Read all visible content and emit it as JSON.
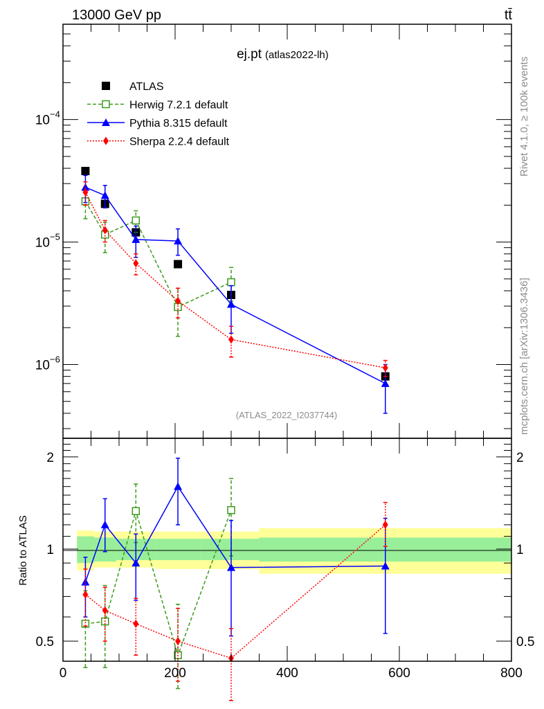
{
  "header": {
    "energy_label": "13000 GeV pp",
    "process_label": "tt̄"
  },
  "side_labels": {
    "rivet": "Rivet 4.1.0, ≥ 100k events",
    "mcplots": "mcplots.cern.ch [arXiv:1306.3436]"
  },
  "chart_data": [
    {
      "type": "scatter",
      "title": "ej.pt",
      "subtitle": "(atlas2022-lh)",
      "watermark": "(ATLAS_2022_I2037744)",
      "xlabel": "",
      "ylabel": "",
      "xlim": [
        0,
        800
      ],
      "ylim": [
        2.5e-07,
        0.0006
      ],
      "yscale": "log",
      "ytick_labels": [
        {
          "value": 1e-06,
          "base": "10",
          "exp": "−6"
        },
        {
          "value": 1e-05,
          "base": "10",
          "exp": "−5"
        },
        {
          "value": 0.0001,
          "base": "10",
          "exp": "−4"
        }
      ],
      "legend_position": "top-left",
      "series": [
        {
          "name": "ATLAS",
          "color": "#000000",
          "marker": "square-filled",
          "line": "none",
          "x": [
            40,
            75,
            130,
            205,
            300,
            575
          ],
          "y": [
            3.8e-05,
            2.05e-05,
            1.2e-05,
            6.6e-06,
            3.7e-06,
            8e-07
          ]
        },
        {
          "name": "Herwig 7.2.1 default",
          "color": "#3a9a1a",
          "marker": "square-open",
          "line": "dashed",
          "x": [
            40,
            75,
            130,
            205,
            300
          ],
          "y": [
            2.15e-05,
            1.15e-05,
            1.5e-05,
            2.95e-06,
            4.7e-06
          ],
          "err_lo": [
            1.55e-05,
            8.2e-06,
            1.2e-05,
            1.7e-06,
            3.3e-06
          ],
          "err_hi": [
            2.75e-05,
            1.45e-05,
            1.8e-05,
            4.2e-06,
            6.2e-06
          ]
        },
        {
          "name": "Pythia 8.315 default",
          "color": "#0000ff",
          "marker": "triangle-filled",
          "line": "solid",
          "x": [
            40,
            75,
            130,
            205,
            300,
            575
          ],
          "y": [
            2.8e-05,
            2.4e-05,
            1.05e-05,
            1.02e-05,
            3.1e-06,
            7e-07
          ],
          "err_lo": [
            2.1e-05,
            1.9e-05,
            7.5e-06,
            7.8e-06,
            1.8e-06,
            4e-07
          ],
          "err_hi": [
            3.5e-05,
            2.9e-05,
            1.35e-05,
            1.28e-05,
            4.4e-06,
            1e-06
          ]
        },
        {
          "name": "Sherpa 2.2.4 default",
          "color": "#ff0000",
          "marker": "diamond-filled",
          "line": "dotted",
          "x": [
            40,
            75,
            130,
            205,
            300,
            575
          ],
          "y": [
            2.55e-05,
            1.25e-05,
            6.7e-06,
            3.3e-06,
            1.6e-06,
            9.4e-07
          ],
          "err_lo": [
            2e-05,
            1e-05,
            5.4e-06,
            2.4e-06,
            1.15e-06,
            8e-07
          ],
          "err_hi": [
            3.1e-05,
            1.5e-05,
            8e-06,
            4.2e-06,
            2.05e-06,
            1.08e-06
          ]
        }
      ]
    },
    {
      "type": "scatter",
      "xlabel": "",
      "ylabel": "Ratio to ATLAS",
      "xlim": [
        0,
        800
      ],
      "ylim": [
        0.43,
        2.3
      ],
      "yscale": "log",
      "xtick_labels": [
        "0",
        "200",
        "400",
        "600",
        "800"
      ],
      "ytick_labels": [
        "0.5",
        "1",
        "2"
      ],
      "uncertainty_bands": [
        {
          "x": [
            25,
            55
          ],
          "inner": [
            0.9,
            1.1
          ],
          "outer": [
            0.85,
            1.15
          ]
        },
        {
          "x": [
            55,
            95
          ],
          "inner": [
            0.91,
            1.09
          ],
          "outer": [
            0.87,
            1.14
          ]
        },
        {
          "x": [
            95,
            165
          ],
          "inner": [
            0.92,
            1.08
          ],
          "outer": [
            0.87,
            1.14
          ]
        },
        {
          "x": [
            165,
            245
          ],
          "inner": [
            0.92,
            1.08
          ],
          "outer": [
            0.86,
            1.14
          ]
        },
        {
          "x": [
            245,
            350
          ],
          "inner": [
            0.92,
            1.08
          ],
          "outer": [
            0.86,
            1.14
          ]
        },
        {
          "x": [
            350,
            800
          ],
          "inner": [
            0.91,
            1.09
          ],
          "outer": [
            0.83,
            1.17
          ]
        }
      ],
      "series": [
        {
          "name": "Herwig 7.2.1 default",
          "color": "#3a9a1a",
          "marker": "square-open",
          "line": "dashed",
          "x": [
            40,
            75,
            130,
            205,
            300
          ],
          "y": [
            0.57,
            0.58,
            1.33,
            0.45,
            1.34
          ],
          "err_lo": [
            0.41,
            0.41,
            1.05,
            0.35,
            0.95
          ],
          "err_hi": [
            0.73,
            0.76,
            1.63,
            0.66,
            1.7
          ]
        },
        {
          "name": "Pythia 8.315 default",
          "color": "#0000ff",
          "marker": "triangle-filled",
          "line": "solid",
          "x": [
            40,
            75,
            130,
            205,
            300,
            575
          ],
          "y": [
            0.78,
            1.2,
            0.9,
            1.6,
            0.87,
            0.88
          ],
          "err_lo": [
            0.6,
            0.98,
            0.68,
            1.2,
            0.52,
            0.53
          ],
          "err_hi": [
            0.94,
            1.46,
            1.12,
            1.98,
            1.24,
            1.26
          ]
        },
        {
          "name": "Sherpa 2.2.4 default",
          "color": "#ff0000",
          "marker": "diamond-filled",
          "line": "dotted",
          "x": [
            40,
            75,
            130,
            205,
            300,
            575
          ],
          "y": [
            0.71,
            0.63,
            0.57,
            0.5,
            0.44,
            1.2
          ],
          "err_lo": [
            0.56,
            0.5,
            0.45,
            0.37,
            0.32,
            1.02
          ],
          "err_hi": [
            0.86,
            0.75,
            0.69,
            0.64,
            0.55,
            1.42
          ]
        }
      ]
    }
  ]
}
